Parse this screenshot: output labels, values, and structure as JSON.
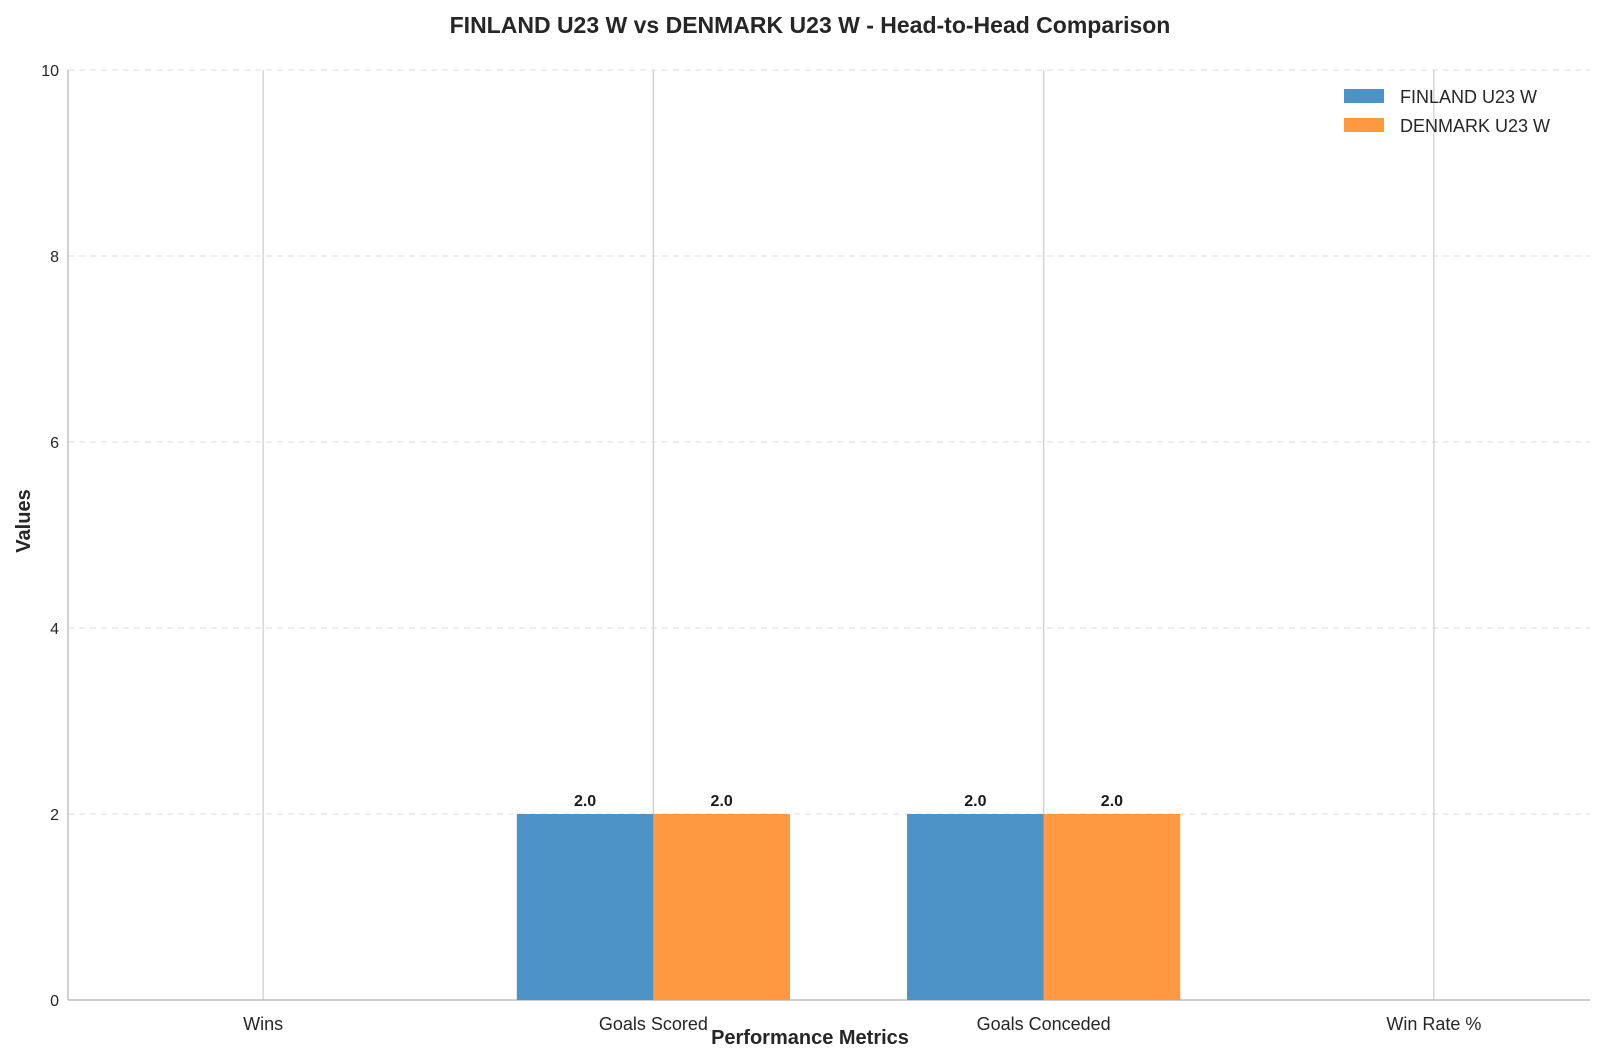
{
  "chart_data": {
    "type": "bar",
    "title": "FINLAND U23 W vs DENMARK U23 W - Head-to-Head Comparison",
    "xlabel": "Performance Metrics",
    "ylabel": "Values",
    "categories": [
      "Wins",
      "Goals Scored",
      "Goals Conceded",
      "Win Rate %"
    ],
    "series": [
      {
        "name": "FINLAND U23 W",
        "color": "#4d93c5",
        "values": [
          0,
          2.0,
          2.0,
          0
        ]
      },
      {
        "name": "DENMARK U23 W",
        "color": "#fe9841",
        "values": [
          0,
          2.0,
          2.0,
          0
        ]
      }
    ],
    "ylim": [
      0,
      10
    ],
    "yticks": [
      "0",
      "2",
      "4",
      "6",
      "8",
      "10"
    ],
    "data_labels": [
      {
        "category": "Goals Scored",
        "series": "FINLAND U23 W",
        "text": "2.0"
      },
      {
        "category": "Goals Scored",
        "series": "DENMARK U23 W",
        "text": "2.0"
      },
      {
        "category": "Goals Conceded",
        "series": "FINLAND U23 W",
        "text": "2.0"
      },
      {
        "category": "Goals Conceded",
        "series": "DENMARK U23 W",
        "text": "2.0"
      }
    ],
    "grid": true,
    "legend_position": "top-right"
  }
}
